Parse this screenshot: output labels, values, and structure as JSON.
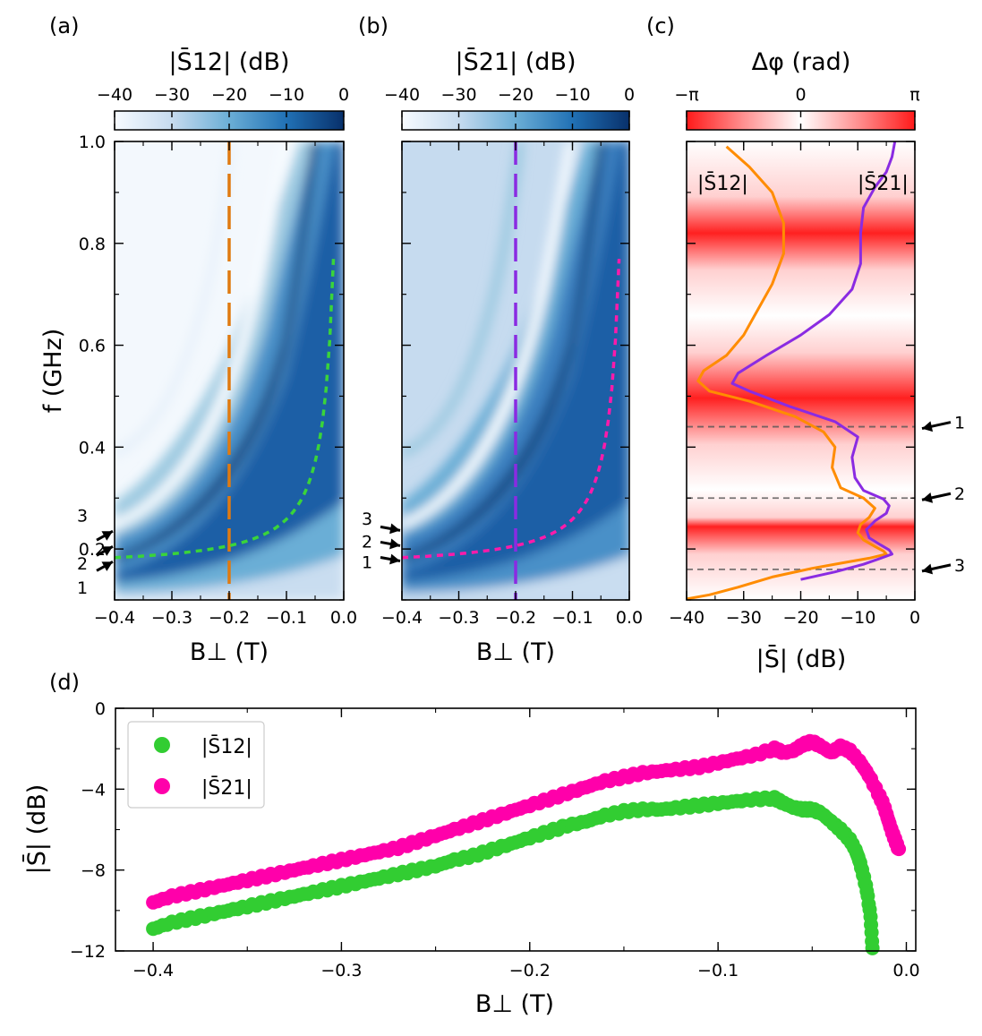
{
  "chart_data": [
    {
      "panel": "(a)",
      "type": "heatmap",
      "colorbar_title": "|S̄12| (dB)",
      "colorbar_ticks": [
        "−40",
        "−30",
        "−20",
        "−10",
        "0"
      ],
      "colorbar_range": [
        -40,
        0
      ],
      "xlabel": "B⊥ (T)",
      "ylabel": "f (GHz)",
      "x_ticks": [
        "−0.4",
        "−0.3",
        "−0.2",
        "−0.1",
        "0.0"
      ],
      "y_ticks": [
        "0.2",
        "0.4",
        "0.6",
        "0.8",
        "1.0"
      ],
      "xlim": [
        -0.4,
        0.0
      ],
      "ylim": [
        0.1,
        1.0
      ],
      "cut_field_T": -0.2,
      "cut_color": "#e07a10",
      "fit_color": "#3ad43a",
      "mode_markers": [
        {
          "label": "1",
          "f_GHz": 0.175
        },
        {
          "label": "2",
          "f_GHz": 0.205
        },
        {
          "label": "3",
          "f_GHz": 0.235
        }
      ]
    },
    {
      "panel": "(b)",
      "type": "heatmap",
      "colorbar_title": "|S̄21| (dB)",
      "colorbar_ticks": [
        "−40",
        "−30",
        "−20",
        "−10",
        "0"
      ],
      "colorbar_range": [
        -40,
        0
      ],
      "xlabel": "B⊥ (T)",
      "x_ticks": [
        "−0.4",
        "−0.3",
        "−0.2",
        "−0.1",
        "0.0"
      ],
      "xlim": [
        -0.4,
        0.0
      ],
      "ylim": [
        0.1,
        1.0
      ],
      "cut_field_T": -0.2,
      "cut_color": "#8a2be2",
      "fit_color": "#ff1aaa",
      "mode_markers": [
        {
          "label": "1",
          "f_GHz": 0.175
        },
        {
          "label": "2",
          "f_GHz": 0.205
        },
        {
          "label": "3",
          "f_GHz": 0.235
        }
      ]
    },
    {
      "panel": "(c)",
      "type": "line",
      "colorbar_title": "Δφ (rad)",
      "colorbar_ticks": [
        "−π",
        "0",
        "π"
      ],
      "xlabel": "|S̄| (dB)",
      "x_ticks": [
        "−40",
        "−30",
        "−20",
        "−10",
        "0"
      ],
      "xlim": [
        -40,
        0
      ],
      "ylim": [
        0.1,
        1.0
      ],
      "red_bands_GHz": [
        0.79,
        0.465,
        0.195
      ],
      "series": [
        {
          "name": "|S̄12|",
          "color": "#ff8c00",
          "points": [
            [
              -40,
              0.102
            ],
            [
              -36,
              0.11
            ],
            [
              -31,
              0.125
            ],
            [
              -25,
              0.145
            ],
            [
              -18,
              0.162
            ],
            [
              -12,
              0.174
            ],
            [
              -8,
              0.182
            ],
            [
              -5,
              0.19
            ],
            [
              -5.5,
              0.196
            ],
            [
              -7,
              0.205
            ],
            [
              -9,
              0.218
            ],
            [
              -10,
              0.232
            ],
            [
              -9.5,
              0.248
            ],
            [
              -8,
              0.262
            ],
            [
              -7,
              0.28
            ],
            [
              -9,
              0.3
            ],
            [
              -13,
              0.32
            ],
            [
              -14.5,
              0.36
            ],
            [
              -14,
              0.4
            ],
            [
              -16,
              0.43
            ],
            [
              -21,
              0.46
            ],
            [
              -29,
              0.49
            ],
            [
              -36,
              0.51
            ],
            [
              -38,
              0.53
            ],
            [
              -37,
              0.55
            ],
            [
              -33,
              0.58
            ],
            [
              -30,
              0.62
            ],
            [
              -28,
              0.66
            ],
            [
              -25,
              0.72
            ],
            [
              -23,
              0.78
            ],
            [
              -23,
              0.84
            ],
            [
              -25,
              0.9
            ],
            [
              -29,
              0.95
            ],
            [
              -33,
              0.99
            ]
          ]
        },
        {
          "name": "|S̄21|",
          "color": "#8a2be2",
          "points": [
            [
              -20,
              0.14
            ],
            [
              -14,
              0.155
            ],
            [
              -9,
              0.17
            ],
            [
              -6,
              0.182
            ],
            [
              -4,
              0.19
            ],
            [
              -4.5,
              0.198
            ],
            [
              -6,
              0.208
            ],
            [
              -8,
              0.222
            ],
            [
              -8.5,
              0.238
            ],
            [
              -7,
              0.255
            ],
            [
              -5,
              0.27
            ],
            [
              -4.5,
              0.285
            ],
            [
              -5.5,
              0.298
            ],
            [
              -9,
              0.315
            ],
            [
              -10.5,
              0.34
            ],
            [
              -11,
              0.38
            ],
            [
              -10,
              0.42
            ],
            [
              -14,
              0.45
            ],
            [
              -22,
              0.48
            ],
            [
              -29,
              0.51
            ],
            [
              -32,
              0.525
            ],
            [
              -31,
              0.545
            ],
            [
              -26,
              0.58
            ],
            [
              -20,
              0.62
            ],
            [
              -15,
              0.66
            ],
            [
              -11,
              0.71
            ],
            [
              -9.5,
              0.76
            ],
            [
              -9.5,
              0.82
            ],
            [
              -9,
              0.87
            ],
            [
              -7,
              0.91
            ],
            [
              -5,
              0.94
            ],
            [
              -4,
              0.97
            ],
            [
              -3.5,
              1.0
            ]
          ]
        }
      ],
      "mode_markers": [
        {
          "label": "1",
          "f_GHz": 0.44
        },
        {
          "label": "2",
          "f_GHz": 0.3
        },
        {
          "label": "3",
          "f_GHz": 0.16
        }
      ]
    },
    {
      "panel": "(d)",
      "type": "scatter",
      "xlabel": "B⊥ (T)",
      "ylabel": "|S̄| (dB)",
      "x_ticks": [
        "−0.4",
        "−0.3",
        "−0.2",
        "−0.1",
        "0.0"
      ],
      "y_ticks": [
        "0",
        "−4",
        "−8",
        "−12"
      ],
      "xlim": [
        -0.42,
        0.005
      ],
      "ylim": [
        -12,
        0
      ],
      "legend_position": "top-left",
      "series": [
        {
          "name": "|S̄12|",
          "color": "#32cd32",
          "points": [
            [
              -0.4,
              -10.9
            ],
            [
              -0.39,
              -10.6
            ],
            [
              -0.38,
              -10.4
            ],
            [
              -0.37,
              -10.2
            ],
            [
              -0.36,
              -10.0
            ],
            [
              -0.35,
              -9.8
            ],
            [
              -0.34,
              -9.6
            ],
            [
              -0.33,
              -9.4
            ],
            [
              -0.32,
              -9.2
            ],
            [
              -0.31,
              -9.0
            ],
            [
              -0.3,
              -8.8
            ],
            [
              -0.29,
              -8.6
            ],
            [
              -0.28,
              -8.4
            ],
            [
              -0.27,
              -8.2
            ],
            [
              -0.26,
              -8.0
            ],
            [
              -0.25,
              -7.8
            ],
            [
              -0.24,
              -7.5
            ],
            [
              -0.23,
              -7.3
            ],
            [
              -0.22,
              -7.0
            ],
            [
              -0.21,
              -6.7
            ],
            [
              -0.2,
              -6.4
            ],
            [
              -0.19,
              -6.1
            ],
            [
              -0.18,
              -5.8
            ],
            [
              -0.17,
              -5.6
            ],
            [
              -0.16,
              -5.3
            ],
            [
              -0.15,
              -5.1
            ],
            [
              -0.14,
              -5.0
            ],
            [
              -0.13,
              -5.0
            ],
            [
              -0.12,
              -4.9
            ],
            [
              -0.11,
              -4.8
            ],
            [
              -0.1,
              -4.7
            ],
            [
              -0.09,
              -4.6
            ],
            [
              -0.08,
              -4.5
            ],
            [
              -0.07,
              -4.45
            ],
            [
              -0.065,
              -4.7
            ],
            [
              -0.06,
              -4.9
            ],
            [
              -0.055,
              -5.0
            ],
            [
              -0.05,
              -5.0
            ],
            [
              -0.045,
              -5.2
            ],
            [
              -0.04,
              -5.6
            ],
            [
              -0.035,
              -6.0
            ],
            [
              -0.03,
              -6.5
            ],
            [
              -0.027,
              -7.0
            ],
            [
              -0.025,
              -7.5
            ],
            [
              -0.023,
              -8.2
            ],
            [
              -0.021,
              -9.0
            ],
            [
              -0.019,
              -10.3
            ],
            [
              -0.018,
              -11.9
            ]
          ]
        },
        {
          "name": "|S̄21|",
          "color": "#ff00aa",
          "points": [
            [
              -0.4,
              -9.6
            ],
            [
              -0.39,
              -9.3
            ],
            [
              -0.38,
              -9.1
            ],
            [
              -0.37,
              -8.9
            ],
            [
              -0.36,
              -8.7
            ],
            [
              -0.35,
              -8.5
            ],
            [
              -0.34,
              -8.3
            ],
            [
              -0.33,
              -8.1
            ],
            [
              -0.32,
              -7.9
            ],
            [
              -0.31,
              -7.7
            ],
            [
              -0.3,
              -7.5
            ],
            [
              -0.29,
              -7.3
            ],
            [
              -0.28,
              -7.1
            ],
            [
              -0.27,
              -6.9
            ],
            [
              -0.26,
              -6.6
            ],
            [
              -0.25,
              -6.3
            ],
            [
              -0.24,
              -6.0
            ],
            [
              -0.23,
              -5.7
            ],
            [
              -0.22,
              -5.4
            ],
            [
              -0.21,
              -5.1
            ],
            [
              -0.2,
              -4.8
            ],
            [
              -0.19,
              -4.5
            ],
            [
              -0.18,
              -4.2
            ],
            [
              -0.17,
              -3.9
            ],
            [
              -0.16,
              -3.6
            ],
            [
              -0.15,
              -3.4
            ],
            [
              -0.14,
              -3.2
            ],
            [
              -0.13,
              -3.1
            ],
            [
              -0.12,
              -3.0
            ],
            [
              -0.11,
              -2.9
            ],
            [
              -0.1,
              -2.7
            ],
            [
              -0.09,
              -2.5
            ],
            [
              -0.08,
              -2.3
            ],
            [
              -0.07,
              -2.0
            ],
            [
              -0.065,
              -2.2
            ],
            [
              -0.06,
              -2.1
            ],
            [
              -0.055,
              -1.8
            ],
            [
              -0.05,
              -1.65
            ],
            [
              -0.045,
              -1.9
            ],
            [
              -0.04,
              -2.2
            ],
            [
              -0.035,
              -1.9
            ],
            [
              -0.03,
              -2.1
            ],
            [
              -0.025,
              -2.6
            ],
            [
              -0.02,
              -3.3
            ],
            [
              -0.015,
              -4.2
            ],
            [
              -0.012,
              -4.8
            ],
            [
              -0.01,
              -5.4
            ],
            [
              -0.008,
              -6.0
            ],
            [
              -0.006,
              -6.5
            ],
            [
              -0.004,
              -7.0
            ]
          ]
        }
      ]
    }
  ]
}
